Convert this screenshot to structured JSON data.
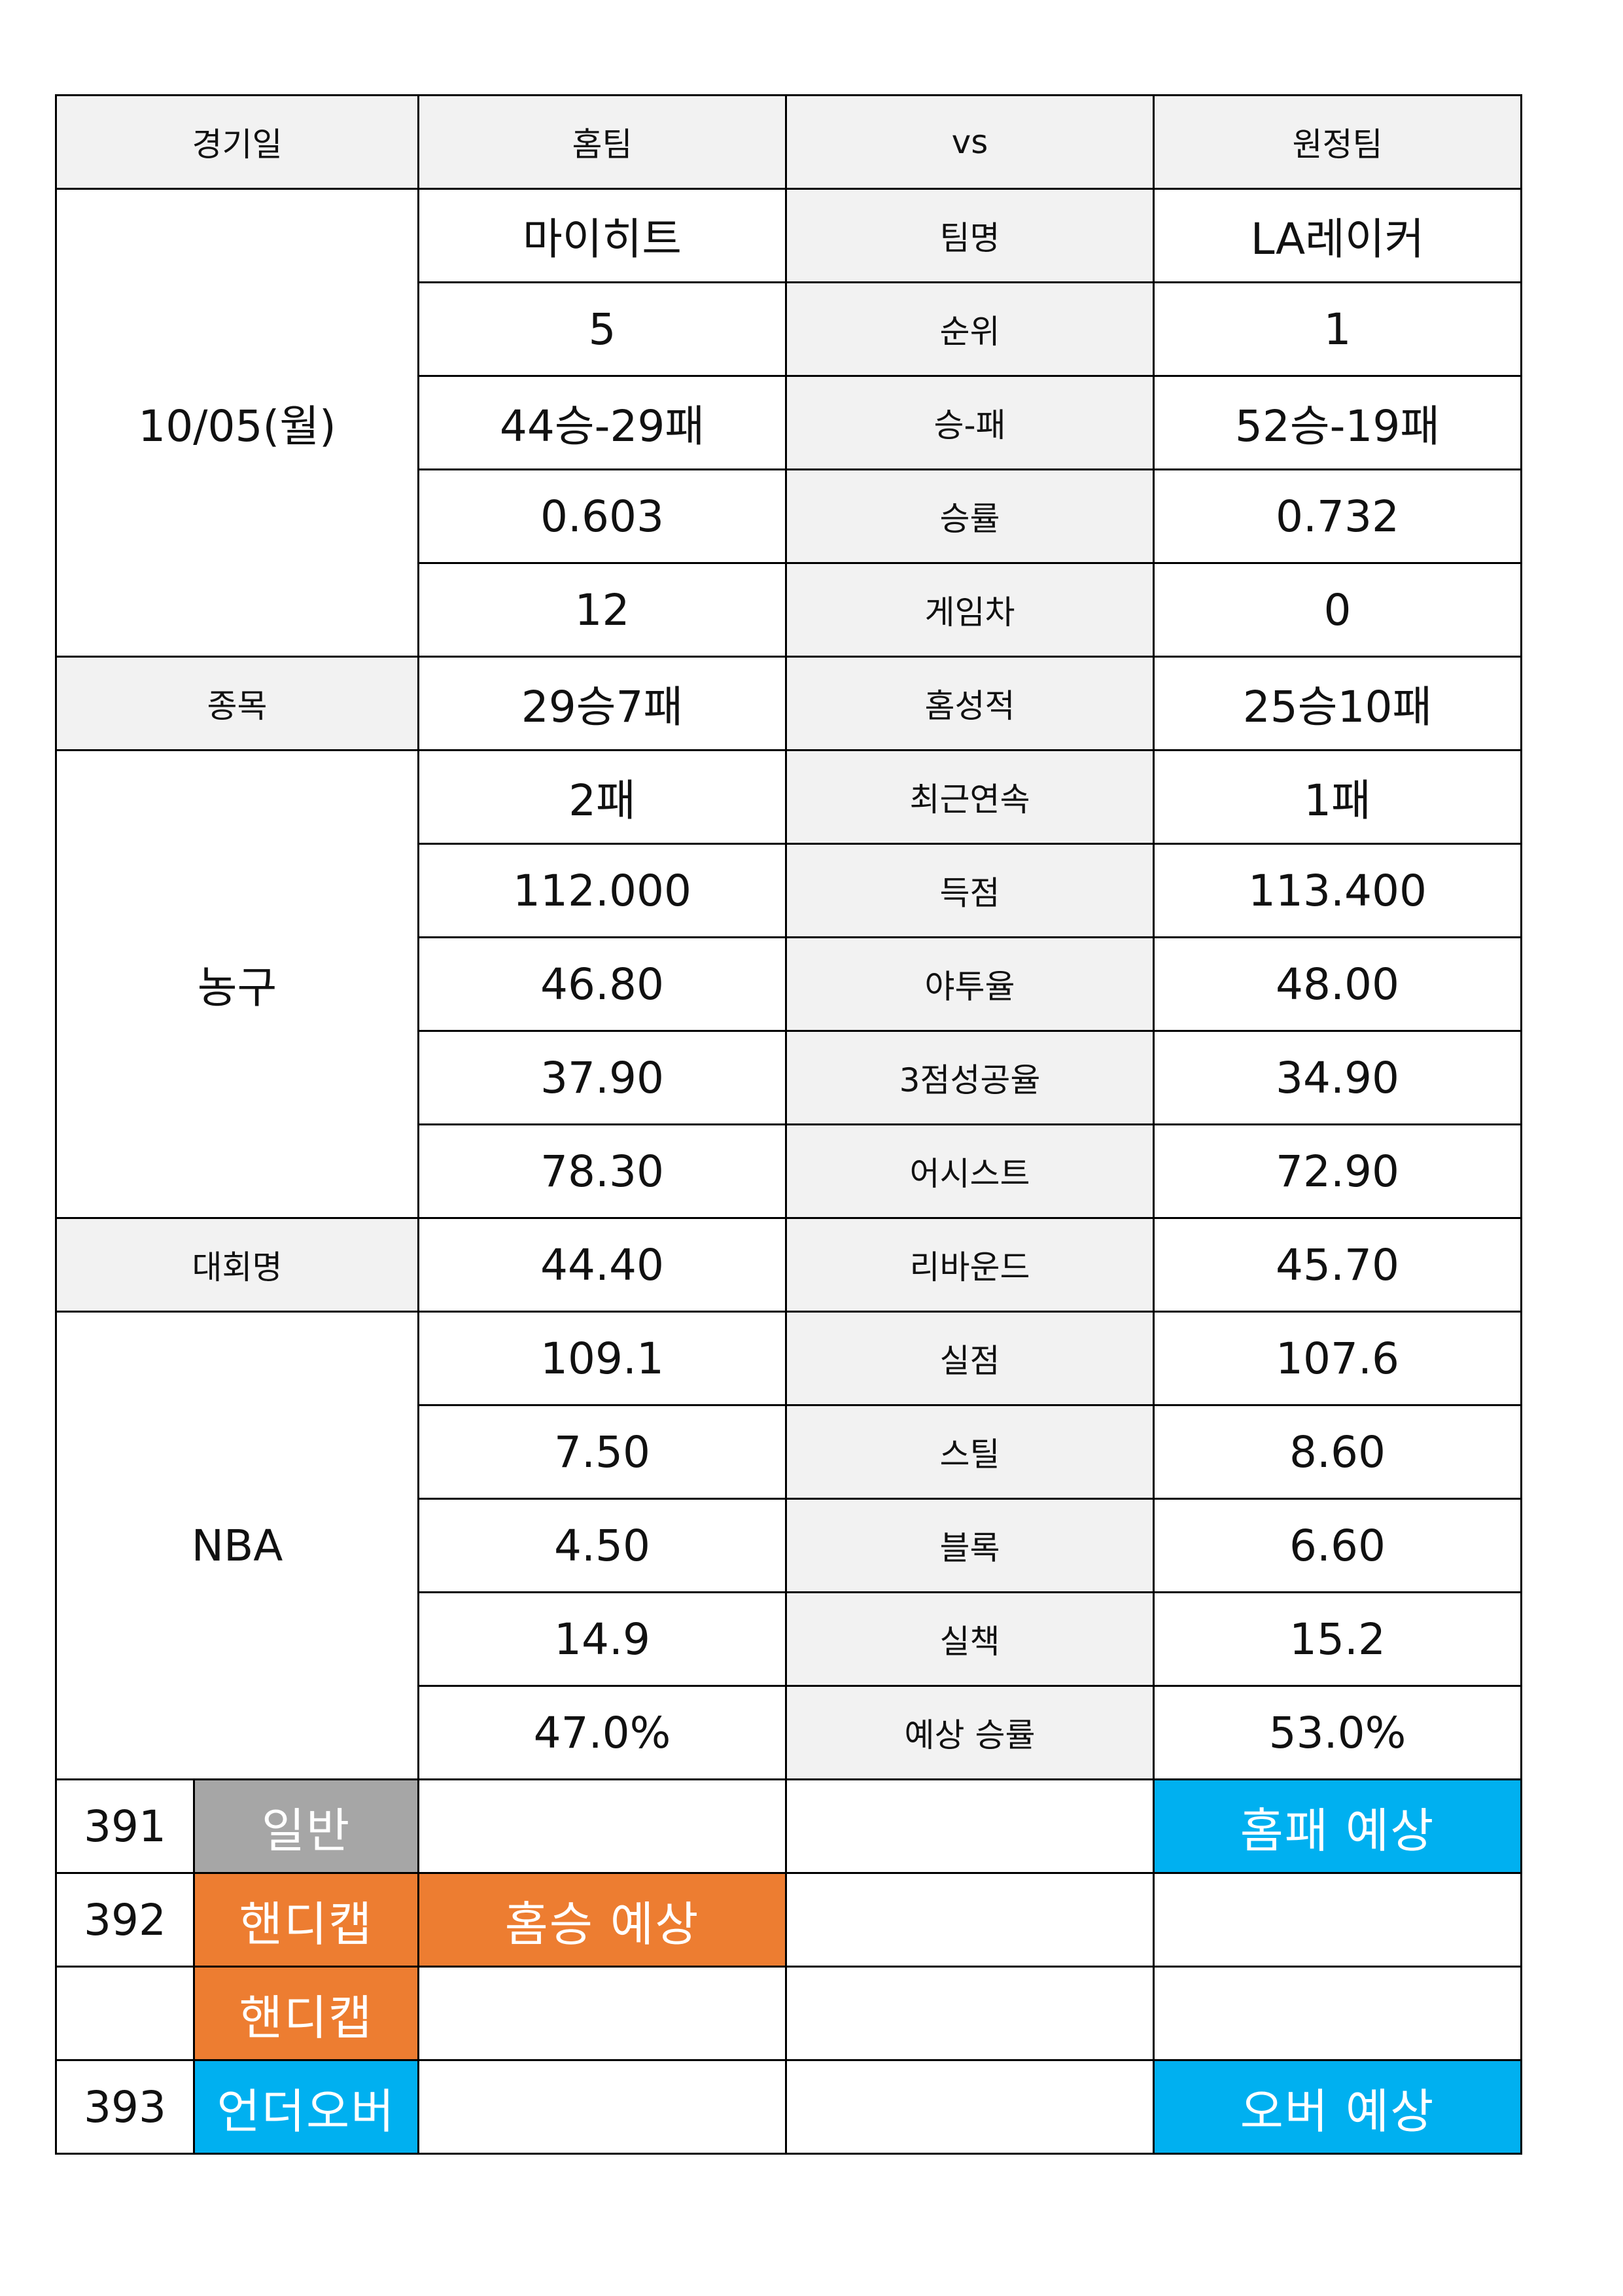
{
  "header": {
    "date": "경기일",
    "home": "홈팀",
    "vs": "vs",
    "away": "원정팀"
  },
  "game_date": "10/05(월)",
  "side_labels": {
    "sport_label": "종목",
    "sport": "농구",
    "league_label": "대회명",
    "league": "NBA"
  },
  "stats": [
    {
      "label": "팀명",
      "home": "마이히트",
      "away": "LA레이커"
    },
    {
      "label": "순위",
      "home": "5",
      "away": "1"
    },
    {
      "label": "승-패",
      "home": "44승-29패",
      "away": "52승-19패"
    },
    {
      "label": "승률",
      "home": "0.603",
      "away": "0.732"
    },
    {
      "label": "게임차",
      "home": "12",
      "away": "0"
    },
    {
      "label": "홈성적",
      "home": "29승7패",
      "away": "25승10패"
    },
    {
      "label": "최근연속",
      "home": "2패",
      "away": "1패"
    },
    {
      "label": "득점",
      "home": "112.000",
      "away": "113.400"
    },
    {
      "label": "야투율",
      "home": "46.80",
      "away": "48.00"
    },
    {
      "label": "3점성공율",
      "home": "37.90",
      "away": "34.90"
    },
    {
      "label": "어시스트",
      "home": "78.30",
      "away": "72.90"
    },
    {
      "label": "리바운드",
      "home": "44.40",
      "away": "45.70"
    },
    {
      "label": "실점",
      "home": "109.1",
      "away": "107.6"
    },
    {
      "label": "스틸",
      "home": "7.50",
      "away": "8.60"
    },
    {
      "label": "블록",
      "home": "4.50",
      "away": "6.60"
    },
    {
      "label": "실책",
      "home": "14.9",
      "away": "15.2"
    },
    {
      "label": "예상 승률",
      "home": "47.0%",
      "away": "53.0%"
    }
  ],
  "predictions": [
    {
      "number": "391",
      "type": "일반",
      "home_pick": "",
      "draw_pick": "",
      "away_pick": "홈패 예상"
    },
    {
      "number": "392",
      "type": "핸디캡",
      "home_pick": "홈승 예상",
      "draw_pick": "",
      "away_pick": ""
    },
    {
      "number": "",
      "type": "핸디캡",
      "home_pick": "",
      "draw_pick": "",
      "away_pick": ""
    },
    {
      "number": "393",
      "type": "언더오버",
      "home_pick": "",
      "draw_pick": "",
      "away_pick": "오버 예상"
    }
  ],
  "colors": {
    "grey_tag": "#a6a6a6",
    "orange_tag": "#ed7d31",
    "blue_tag": "#00b0f0",
    "label_bg": "#f2f2f2"
  }
}
